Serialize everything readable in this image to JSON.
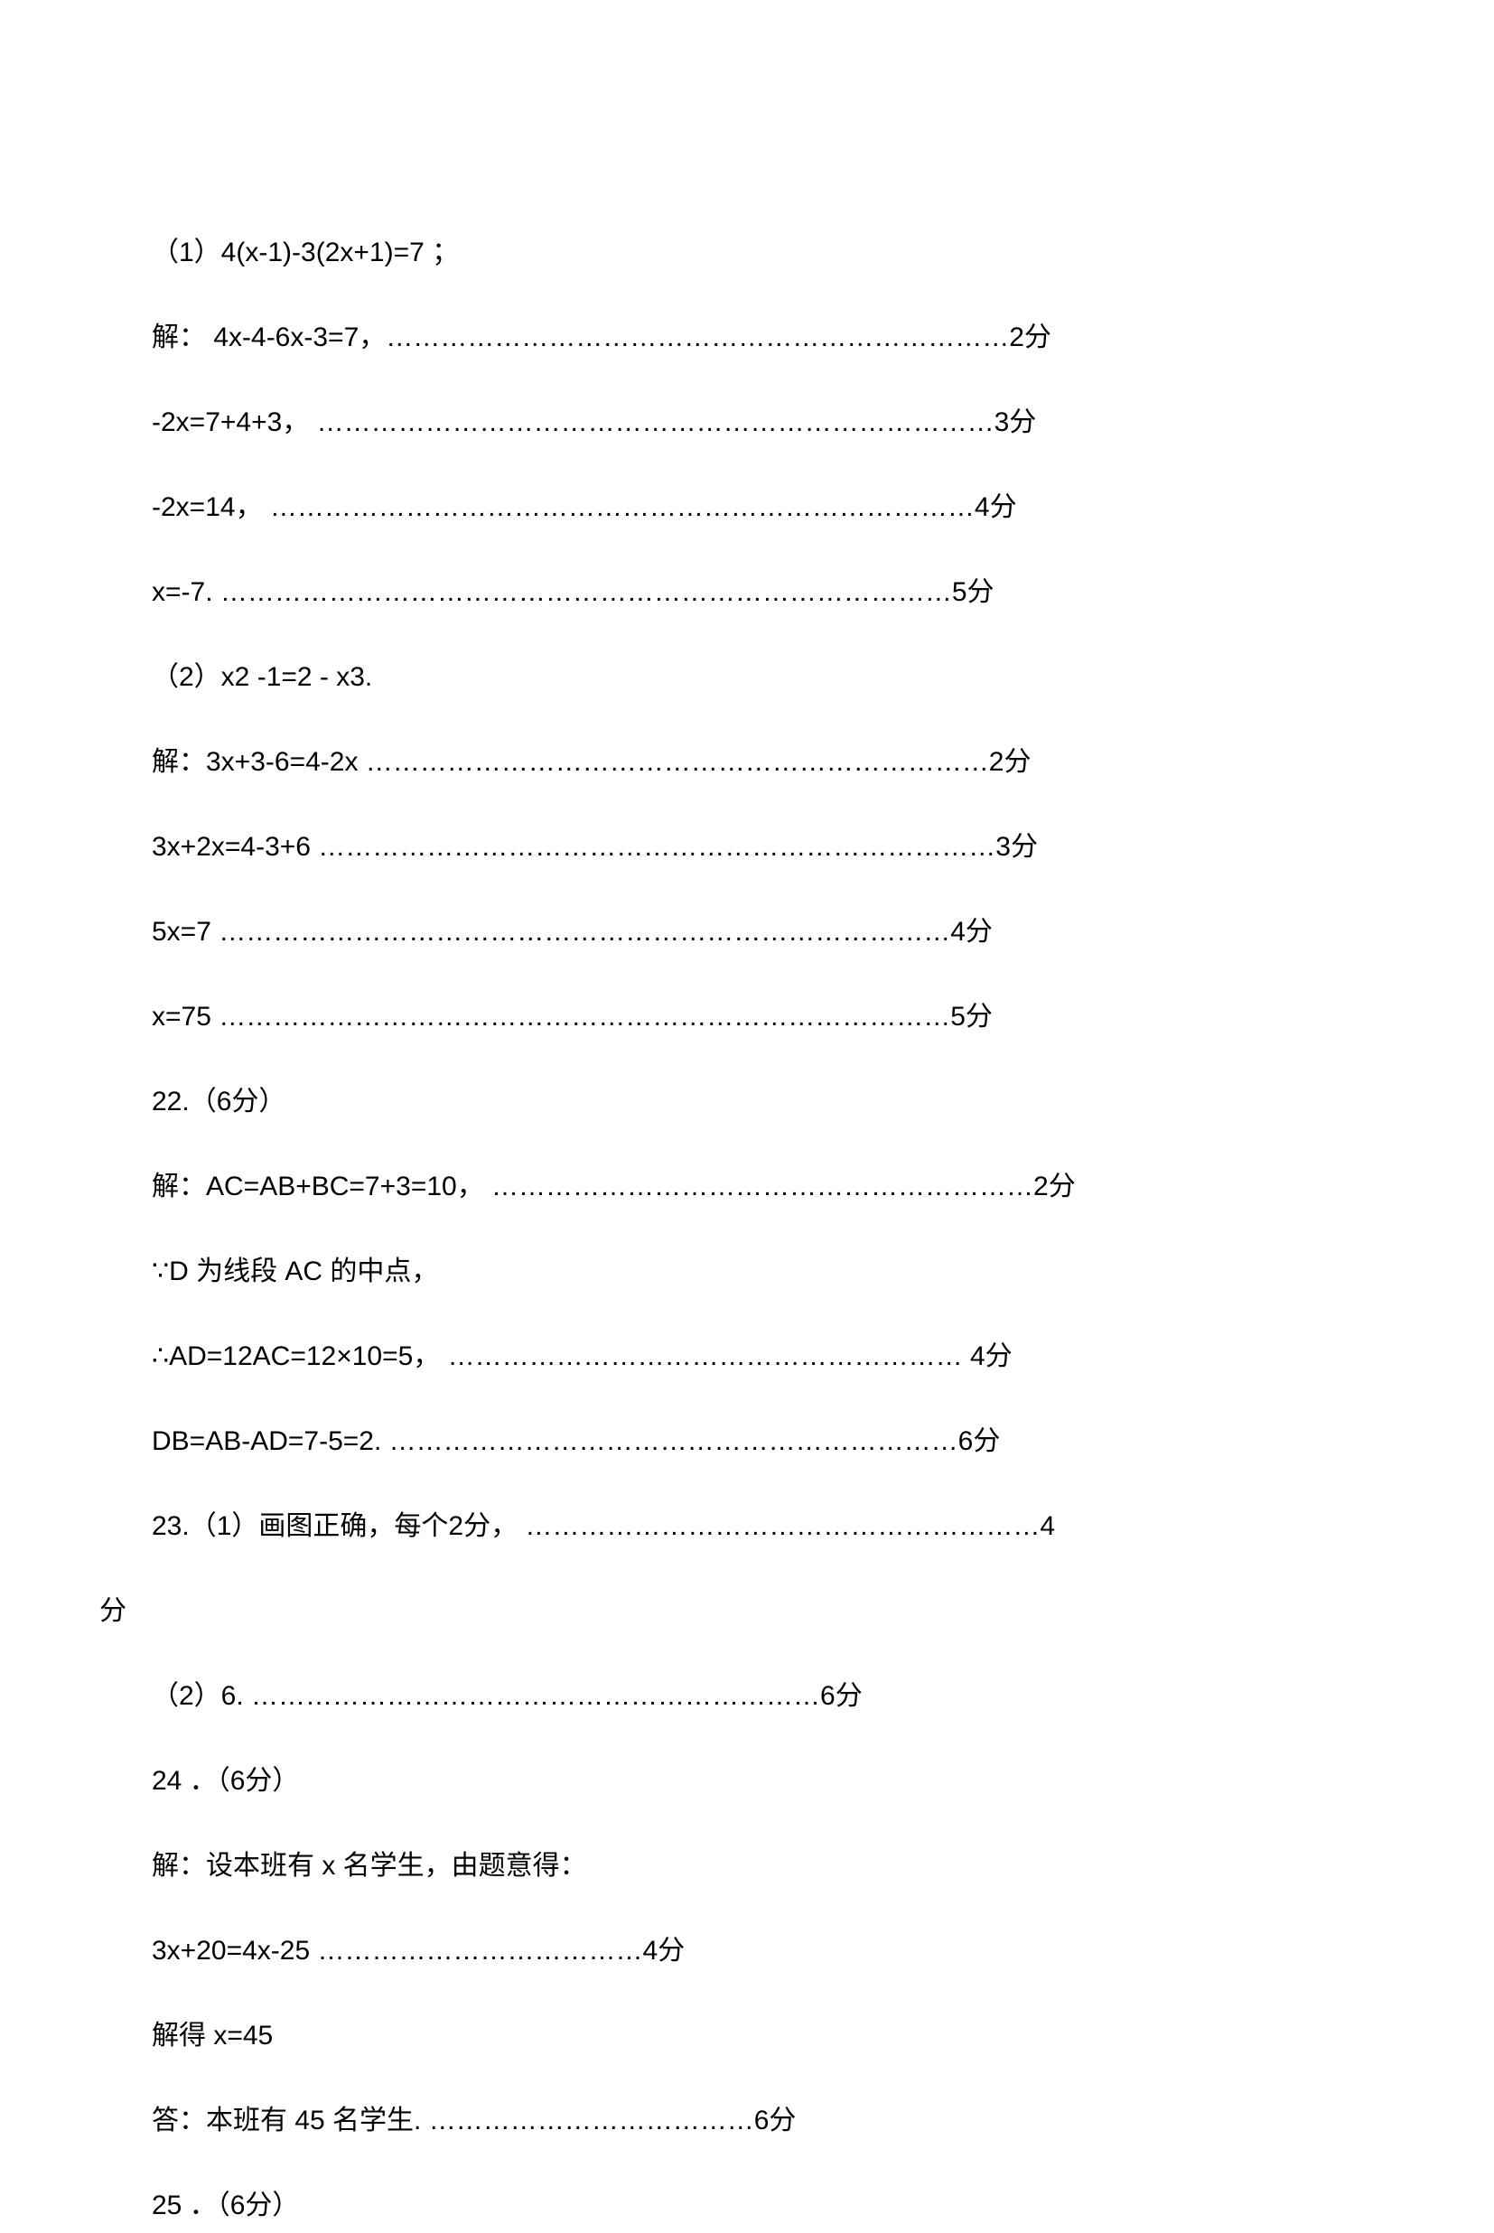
{
  "lines": [
    {
      "indent": true,
      "text": "（1）4(x-1)-3(2x+1)=7 ；"
    },
    {
      "indent": true,
      "text": "解： 4x-4-6x-3=7，……………………………………………………………2分"
    },
    {
      "indent": true,
      "text": "-2x=7+4+3， …………………………………………………………………3分"
    },
    {
      "indent": true,
      "text": "-2x=14， ……………………………………………………………………4分"
    },
    {
      "indent": true,
      "text": "x=-7.  ………………………………………………………………………5分"
    },
    {
      "indent": true,
      "text": "（2）x2 -1=2 - x3."
    },
    {
      "indent": true,
      "text": "解：3x+3-6=4-2x  ……………………………………………………………2分"
    },
    {
      "indent": true,
      "text": "3x+2x=4-3+6  …………………………………………………………………3分"
    },
    {
      "indent": true,
      "text": "5x=7   ………………………………………………………………………4分"
    },
    {
      "indent": true,
      "text": "x=75   ………………………………………………………………………5分"
    },
    {
      "indent": true,
      "text": "22.（6分）"
    },
    {
      "indent": true,
      "text": "解：AC=AB+BC=7+3=10， ……………………………………………………2分"
    },
    {
      "indent": true,
      "text": "∵D 为线段 AC 的中点，"
    },
    {
      "indent": true,
      "text": "∴AD=12AC=12×10=5，     ………………………………………………… 4分"
    },
    {
      "indent": true,
      "text": "DB=AB-AD=7-5=2.   ………………………………………………………6分"
    },
    {
      "indent": true,
      "text": "23.（1）画图正确，每个2分，  …………………………………………………4"
    },
    {
      "indent": false,
      "text": "分"
    },
    {
      "indent": true,
      "text": "（2）6.               ………………………………………………………6分"
    },
    {
      "indent": true,
      "text": "24 ．（6分）"
    },
    {
      "indent": true,
      "text": "解：设本班有 x 名学生，由题意得："
    },
    {
      "indent": true,
      "text": "3x+20=4x-25     ………………………………4分"
    },
    {
      "indent": true,
      "text": "解得 x=45"
    },
    {
      "indent": true,
      "text": "答：本班有 45 名学生. ………………………………6分"
    },
    {
      "indent": true,
      "text": "25 ．（6分）"
    }
  ]
}
